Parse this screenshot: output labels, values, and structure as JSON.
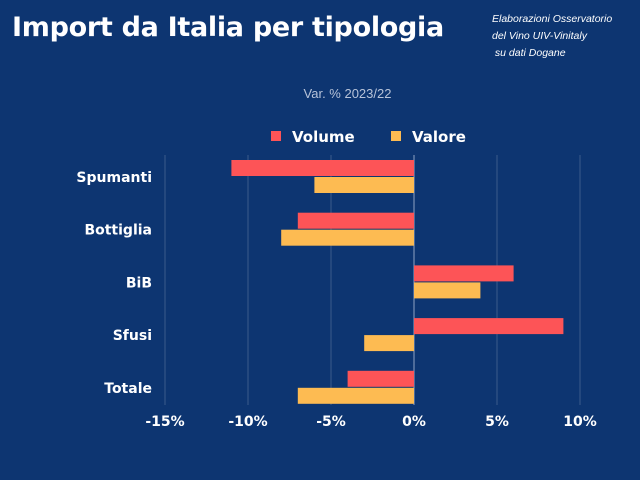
{
  "header": {
    "title": "Import da Italia per tipologia",
    "source_lines": [
      "Elaborazioni Osservatorio",
      "del Vino UIV-Vinitaly",
      " su dati Dogane"
    ]
  },
  "chart_data": {
    "type": "bar",
    "orientation": "horizontal",
    "title": "Import da Italia per tipologia",
    "subtitle": "Var. % 2023/22",
    "xlabel": "",
    "ylabel": "",
    "categories": [
      "Spumanti",
      "Bottiglia",
      "BiB",
      "Sfusi",
      "Totale"
    ],
    "series": [
      {
        "name": "Volume",
        "color": "#fd5457",
        "values": [
          -11,
          -7,
          6,
          9,
          -4
        ]
      },
      {
        "name": "Valore",
        "color": "#fdbb52",
        "values": [
          -6,
          -8,
          4,
          -3,
          -7
        ]
      }
    ],
    "xlim": [
      -15,
      12
    ],
    "xticks": [
      -15,
      -10,
      -5,
      0,
      5,
      10
    ],
    "xtick_labels": [
      "-15%",
      "-10%",
      "-5%",
      "0%",
      "5%",
      "10%"
    ],
    "grid": true,
    "legend": "top-center"
  }
}
